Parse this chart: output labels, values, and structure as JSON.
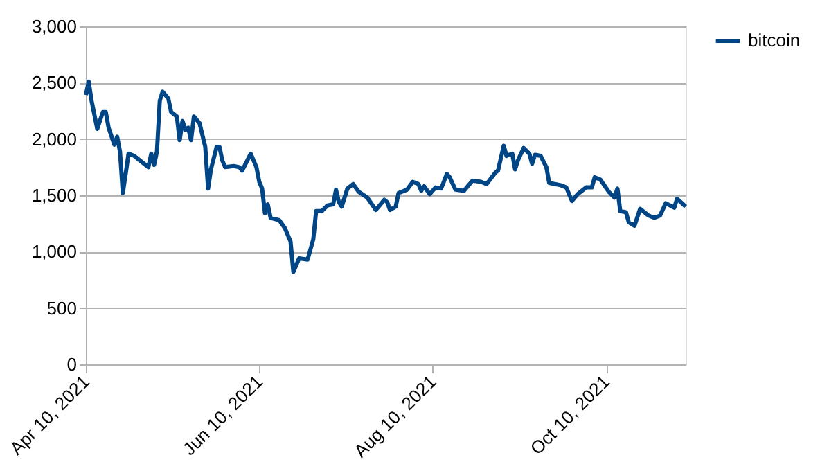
{
  "chart_data": {
    "type": "line",
    "x": [
      "2021-04-10",
      "2021-04-11",
      "2021-04-12",
      "2021-04-14",
      "2021-04-16",
      "2021-04-17",
      "2021-04-18",
      "2021-04-20",
      "2021-04-21",
      "2021-04-22",
      "2021-04-23",
      "2021-04-24",
      "2021-04-25",
      "2021-04-27",
      "2021-04-29",
      "2021-04-30",
      "2021-05-02",
      "2021-05-03",
      "2021-05-04",
      "2021-05-05",
      "2021-05-06",
      "2021-05-07",
      "2021-05-09",
      "2021-05-10",
      "2021-05-12",
      "2021-05-13",
      "2021-05-14",
      "2021-05-15",
      "2021-05-16",
      "2021-05-17",
      "2021-05-18",
      "2021-05-20",
      "2021-05-22",
      "2021-05-23",
      "2021-05-24",
      "2021-05-26",
      "2021-05-27",
      "2021-05-28",
      "2021-05-29",
      "2021-06-01",
      "2021-06-03",
      "2021-06-04",
      "2021-06-07",
      "2021-06-09",
      "2021-06-10",
      "2021-06-11",
      "2021-06-12",
      "2021-06-13",
      "2021-06-14",
      "2021-06-17",
      "2021-06-19",
      "2021-06-21",
      "2021-06-22",
      "2021-06-24",
      "2021-06-27",
      "2021-06-29",
      "2021-06-30",
      "2021-07-02",
      "2021-07-04",
      "2021-07-06",
      "2021-07-07",
      "2021-07-08",
      "2021-07-09",
      "2021-07-11",
      "2021-07-13",
      "2021-07-15",
      "2021-07-18",
      "2021-07-21",
      "2021-07-24",
      "2021-07-25",
      "2021-07-26",
      "2021-07-28",
      "2021-07-29",
      "2021-08-01",
      "2021-08-03",
      "2021-08-05",
      "2021-08-06",
      "2021-08-07",
      "2021-08-09",
      "2021-08-11",
      "2021-08-13",
      "2021-08-15",
      "2021-08-16",
      "2021-08-18",
      "2021-08-21",
      "2021-08-24",
      "2021-08-27",
      "2021-08-29",
      "2021-09-01",
      "2021-09-02",
      "2021-09-04",
      "2021-09-05",
      "2021-09-07",
      "2021-09-08",
      "2021-09-09",
      "2021-09-11",
      "2021-09-13",
      "2021-09-14",
      "2021-09-15",
      "2021-09-17",
      "2021-09-19",
      "2021-09-20",
      "2021-09-22",
      "2021-09-24",
      "2021-09-26",
      "2021-09-28",
      "2021-09-30",
      "2021-10-03",
      "2021-10-05",
      "2021-10-06",
      "2021-10-08",
      "2021-10-11",
      "2021-10-13",
      "2021-10-14",
      "2021-10-15",
      "2021-10-17",
      "2021-10-18",
      "2021-10-20",
      "2021-10-22",
      "2021-10-25",
      "2021-10-27",
      "2021-10-29",
      "2021-10-31",
      "2021-11-03",
      "2021-11-04",
      "2021-11-07"
    ],
    "series": [
      {
        "name": "bitcoin",
        "color": "#004586",
        "values": [
          2390,
          2510,
          2340,
          2090,
          2240,
          2240,
          2100,
          1950,
          2020,
          1890,
          1520,
          1690,
          1870,
          1850,
          1810,
          1790,
          1750,
          1870,
          1770,
          1890,
          2340,
          2420,
          2360,
          2240,
          2200,
          1990,
          2160,
          2080,
          2100,
          1990,
          2200,
          2140,
          1930,
          1560,
          1730,
          1930,
          1930,
          1810,
          1750,
          1760,
          1750,
          1720,
          1870,
          1750,
          1620,
          1560,
          1340,
          1420,
          1300,
          1280,
          1210,
          1090,
          820,
          940,
          930,
          1110,
          1360,
          1360,
          1410,
          1420,
          1550,
          1440,
          1400,
          1560,
          1600,
          1530,
          1480,
          1370,
          1460,
          1440,
          1370,
          1400,
          1520,
          1550,
          1620,
          1600,
          1540,
          1580,
          1510,
          1570,
          1560,
          1690,
          1660,
          1550,
          1540,
          1630,
          1620,
          1600,
          1700,
          1720,
          1940,
          1850,
          1870,
          1730,
          1810,
          1920,
          1870,
          1780,
          1860,
          1850,
          1750,
          1610,
          1600,
          1590,
          1570,
          1450,
          1510,
          1570,
          1570,
          1660,
          1640,
          1530,
          1480,
          1560,
          1360,
          1350,
          1260,
          1230,
          1380,
          1320,
          1300,
          1320,
          1430,
          1390,
          1470,
          1400
        ]
      }
    ],
    "xlim": [
      "2021-04-10",
      "2021-11-07"
    ],
    "xticks": [
      {
        "value": "2021-04-10",
        "label": "Apr 10, 2021"
      },
      {
        "value": "2021-06-10",
        "label": "Jun 10, 2021"
      },
      {
        "value": "2021-08-10",
        "label": "Aug 10, 2021"
      },
      {
        "value": "2021-10-10",
        "label": "Oct 10, 2021"
      }
    ],
    "ylim": [
      0,
      3000
    ],
    "yticks": [
      {
        "value": 0,
        "label": "0"
      },
      {
        "value": 500,
        "label": "500"
      },
      {
        "value": 1000,
        "label": "1,000"
      },
      {
        "value": 1500,
        "label": "1,500"
      },
      {
        "value": 2000,
        "label": "2,000"
      },
      {
        "value": 2500,
        "label": "2,500"
      },
      {
        "value": 3000,
        "label": "3,000"
      }
    ],
    "grid": "y",
    "legend": "right",
    "marker": "none",
    "line_style": "solid"
  }
}
